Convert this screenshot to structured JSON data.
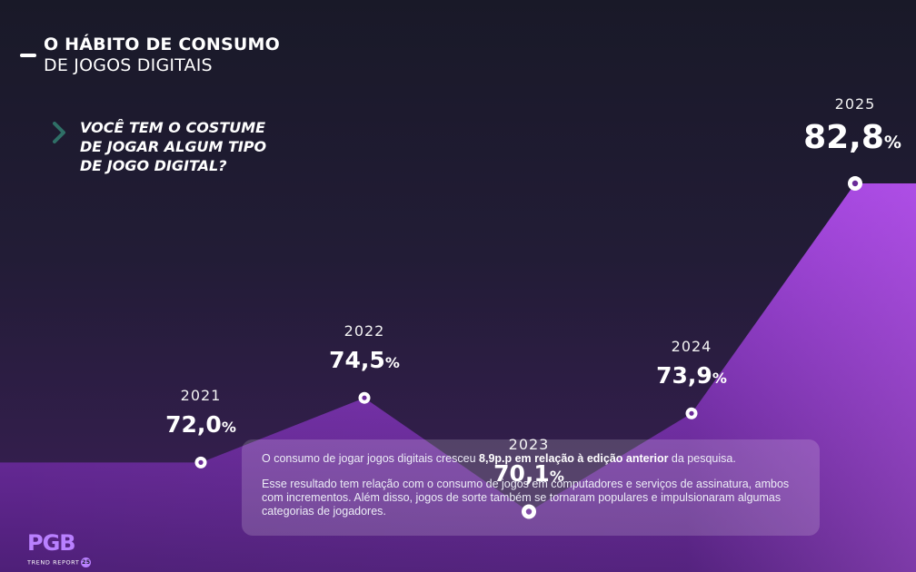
{
  "header": {
    "title": "O HÁBITO DE CONSUMO",
    "subtitle": "DE JOGOS DIGITAIS"
  },
  "question": "VOCÊ TEM O COSTUME\nDE JOGAR ALGUM TIPO\nDE JOGO DIGITAL?",
  "chart_data": {
    "type": "area",
    "x": [
      "2021",
      "2022",
      "2023",
      "2024",
      "2025"
    ],
    "values": [
      72.0,
      74.5,
      70.1,
      73.9,
      82.8
    ],
    "labels": [
      {
        "num": "72,0",
        "pct": "%"
      },
      {
        "num": "74,5",
        "pct": "%"
      },
      {
        "num": "70,1",
        "pct": "%"
      },
      {
        "num": "73,9",
        "pct": "%"
      },
      {
        "num": "82,8",
        "pct": "%"
      }
    ],
    "ylim": [
      64.6,
      82.8
    ],
    "grid": false,
    "colors": {
      "background_top": "#191928",
      "background_bottom": "#3c1f58",
      "area_top": "#9a3ed8",
      "area_bottom": "#5d2389",
      "area_right": "#b648f0",
      "marker": "#ffffff"
    }
  },
  "info_box": {
    "line1_pre": "O consumo de jogar jogos digitais cresceu ",
    "line1_bold": "8,9p.p em relação à edição anterior",
    "line1_post": " da pesquisa.",
    "paragraph2": "Esse resultado tem relação com o consumo de jogos em computadores e serviços de assinatura, ambos com incrementos. Além disso, jogos de sorte também se tornaram populares e impulsionaram algumas categorias de jogadores."
  },
  "logo": {
    "text": "PGB",
    "sub": "TREND REPORT",
    "badge": "25"
  }
}
